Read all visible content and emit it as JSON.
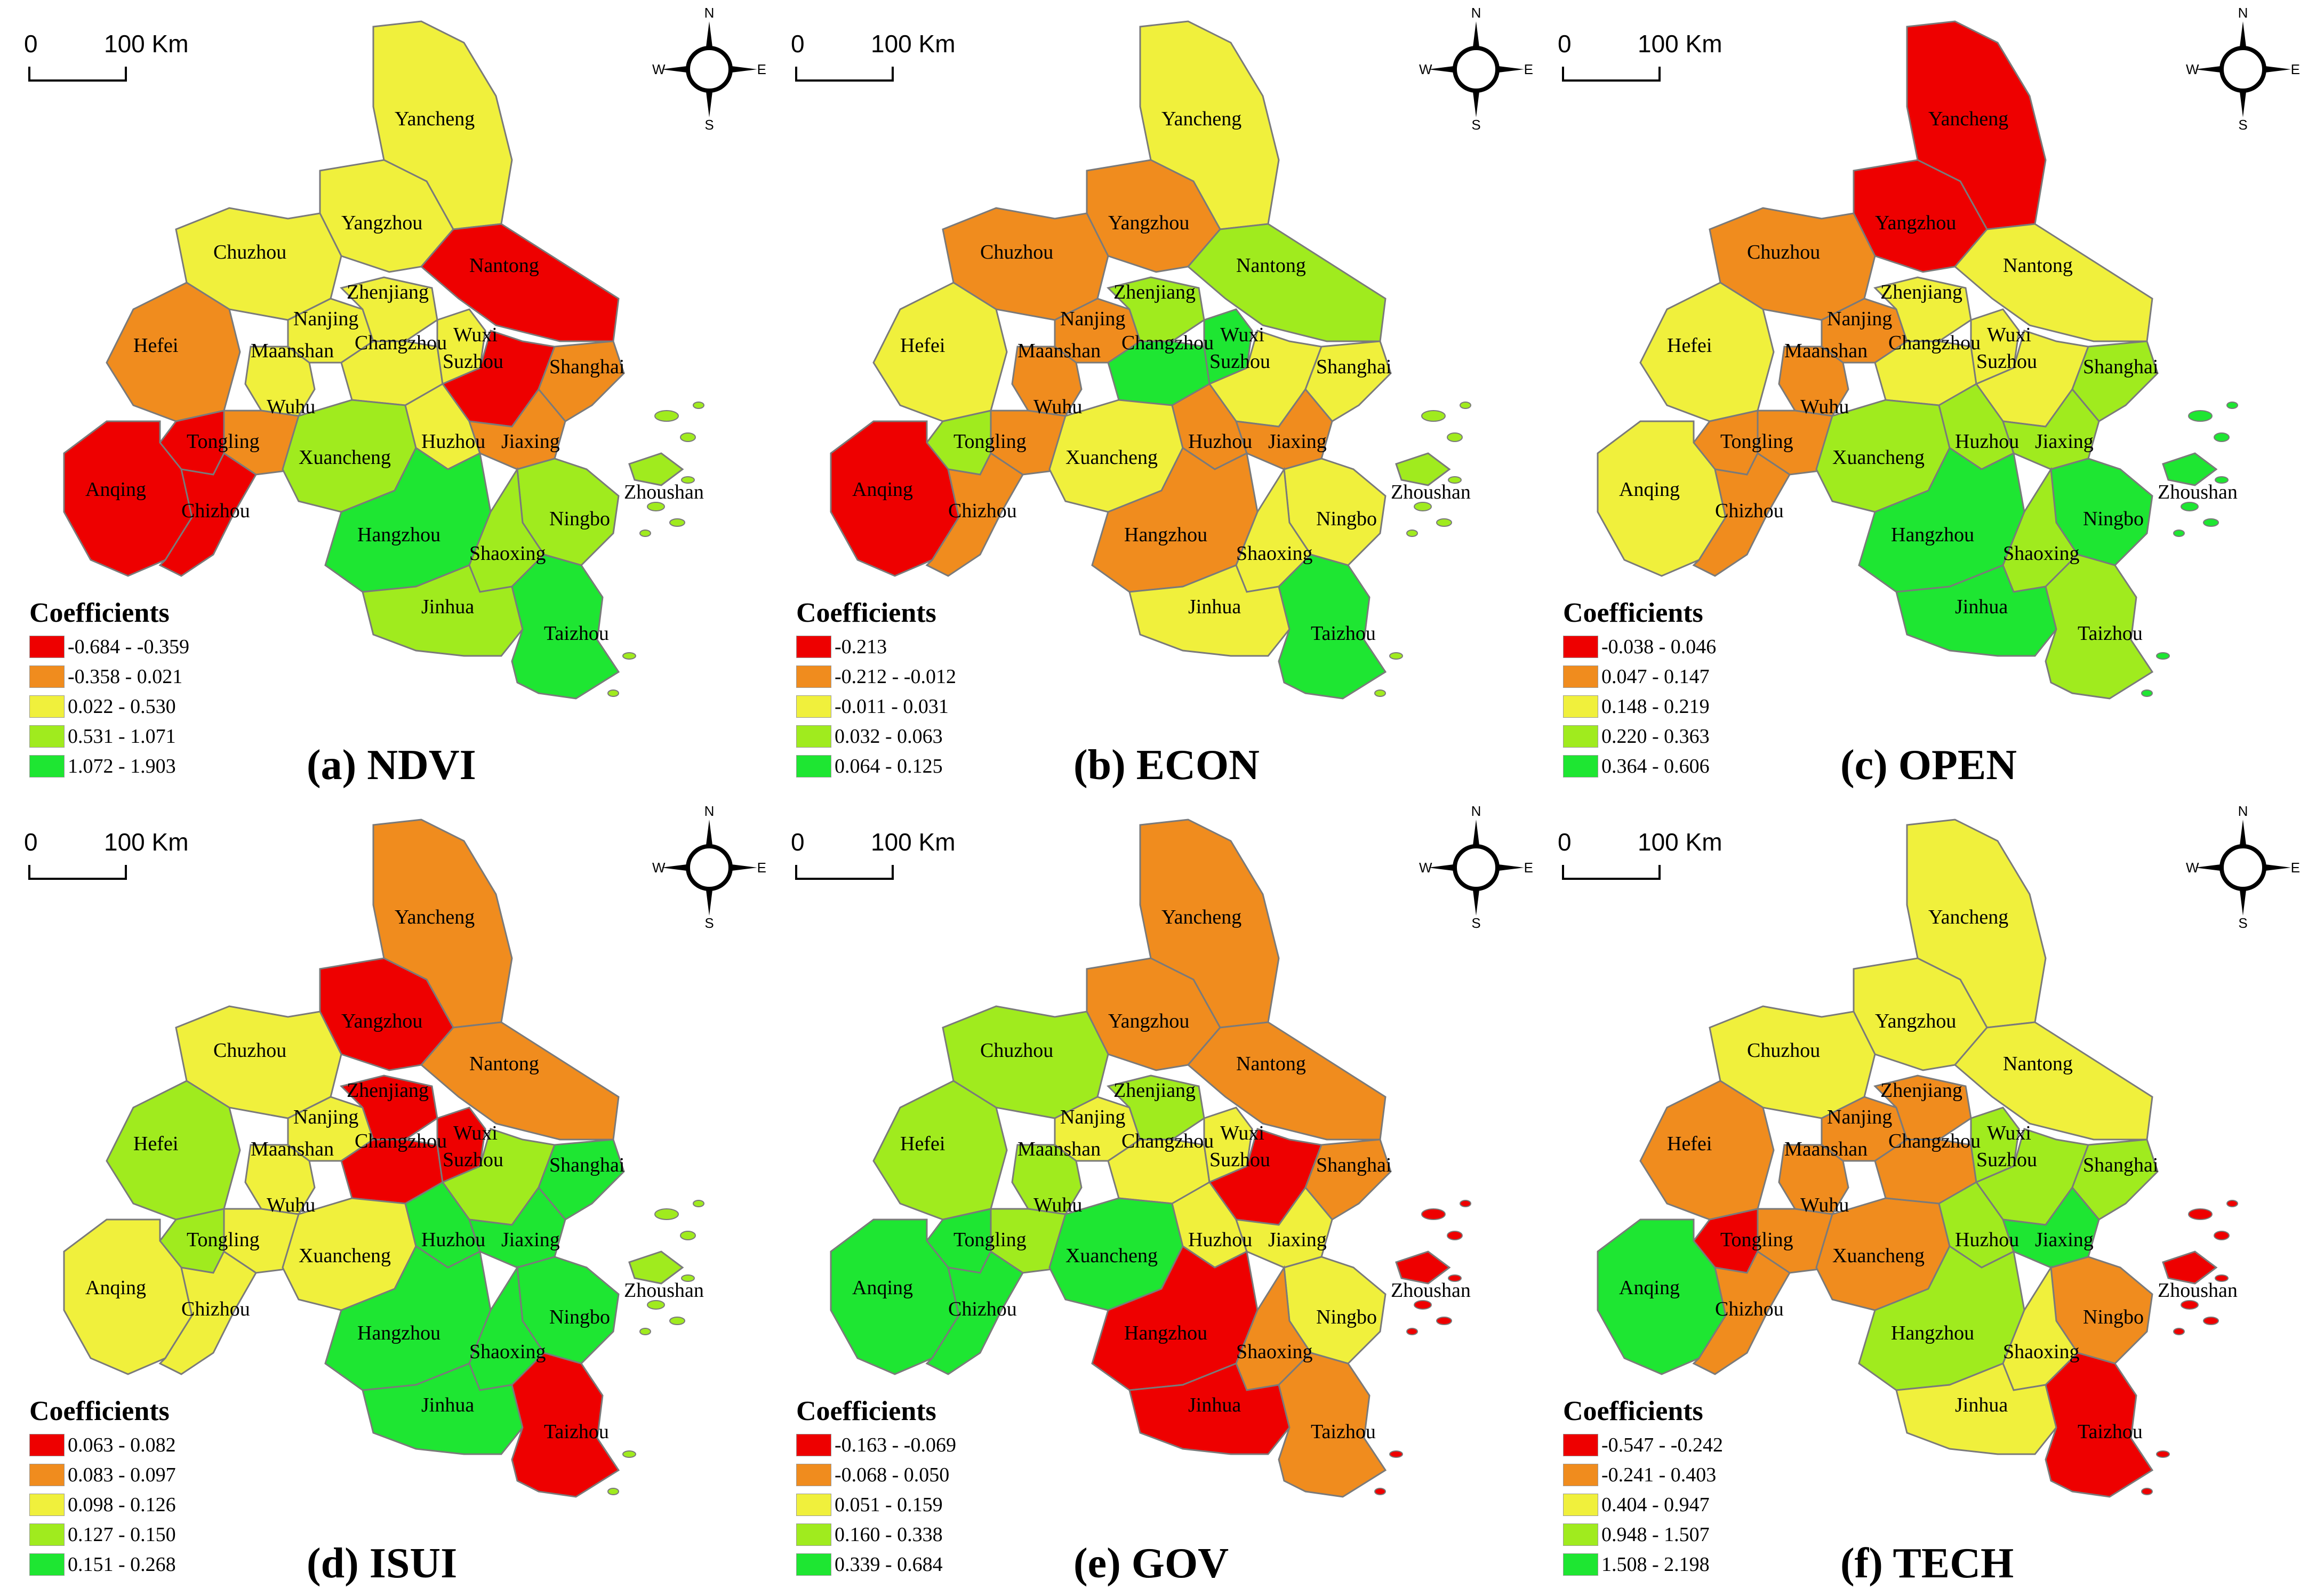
{
  "colors": {
    "red": "#ee0000",
    "orange": "#f08c1e",
    "yellow": "#f0f03c",
    "lightgreen": "#a0eb1e",
    "green": "#1ee632"
  },
  "scale_bar": {
    "zero": "0",
    "distance": "100 Km"
  },
  "compass": {
    "n": "N",
    "s": "S",
    "e": "E",
    "w": "W"
  },
  "legend_title": "Coefficients",
  "cities": [
    "Yancheng",
    "Yangzhou",
    "Chuzhou",
    "Nantong",
    "Nanjing",
    "Zhenjiang",
    "Hefei",
    "Maanshan",
    "Changzhou",
    "Wuxi",
    "Suzhou",
    "Shanghai",
    "Wuhu",
    "Tongling",
    "Xuancheng",
    "Huzhou",
    "Jiaxing",
    "Anqing",
    "Chizhou",
    "Zhoushan",
    "Hangzhou",
    "Ningbo",
    "Shaoxing",
    "Jinhua",
    "Taizhou"
  ],
  "panels": [
    {
      "caption": "(a) NDVI",
      "legend": [
        "-0.684 - -0.359",
        "-0.358 - 0.021",
        "0.022 - 0.530",
        "0.531 - 1.071",
        "1.072 - 1.903"
      ],
      "classes": {
        "Yancheng": 2,
        "Yangzhou": 2,
        "Chuzhou": 2,
        "Nantong": 0,
        "Nanjing": 2,
        "Zhenjiang": 2,
        "Hefei": 1,
        "Maanshan": 2,
        "Changzhou": 2,
        "Wuxi": 2,
        "Suzhou": 0,
        "Shanghai": 1,
        "Wuhu": 1,
        "Tongling": 0,
        "Xuancheng": 3,
        "Huzhou": 2,
        "Jiaxing": 1,
        "Anqing": 0,
        "Chizhou": 0,
        "Zhoushan": 3,
        "Hangzhou": 4,
        "Ningbo": 3,
        "Shaoxing": 3,
        "Jinhua": 3,
        "Taizhou": 4
      }
    },
    {
      "caption": "(b) ECON",
      "legend": [
        "-0.213",
        "-0.212 - -0.012",
        "-0.011 - 0.031",
        "0.032 - 0.063",
        "0.064 - 0.125"
      ],
      "classes": {
        "Yancheng": 2,
        "Yangzhou": 1,
        "Chuzhou": 1,
        "Nantong": 3,
        "Nanjing": 1,
        "Zhenjiang": 3,
        "Hefei": 2,
        "Maanshan": 1,
        "Changzhou": 4,
        "Wuxi": 4,
        "Suzhou": 2,
        "Shanghai": 2,
        "Wuhu": 1,
        "Tongling": 3,
        "Xuancheng": 2,
        "Huzhou": 1,
        "Jiaxing": 1,
        "Anqing": 0,
        "Chizhou": 1,
        "Zhoushan": 3,
        "Hangzhou": 1,
        "Ningbo": 2,
        "Shaoxing": 2,
        "Jinhua": 2,
        "Taizhou": 4
      }
    },
    {
      "caption": "(c) OPEN",
      "legend": [
        "-0.038 - 0.046",
        "0.047 - 0.147",
        "0.148 - 0.219",
        "0.220 - 0.363",
        "0.364 - 0.606"
      ],
      "classes": {
        "Yancheng": 0,
        "Yangzhou": 0,
        "Chuzhou": 1,
        "Nantong": 2,
        "Nanjing": 1,
        "Zhenjiang": 2,
        "Hefei": 2,
        "Maanshan": 1,
        "Changzhou": 2,
        "Wuxi": 2,
        "Suzhou": 2,
        "Shanghai": 3,
        "Wuhu": 1,
        "Tongling": 1,
        "Xuancheng": 3,
        "Huzhou": 3,
        "Jiaxing": 3,
        "Anqing": 2,
        "Chizhou": 1,
        "Zhoushan": 4,
        "Hangzhou": 4,
        "Ningbo": 4,
        "Shaoxing": 3,
        "Jinhua": 4,
        "Taizhou": 3
      }
    },
    {
      "caption": "(d) ISUI",
      "legend": [
        "0.063 - 0.082",
        "0.083 - 0.097",
        "0.098 - 0.126",
        "0.127 - 0.150",
        "0.151 - 0.268"
      ],
      "classes": {
        "Yancheng": 1,
        "Yangzhou": 0,
        "Chuzhou": 2,
        "Nantong": 1,
        "Nanjing": 2,
        "Zhenjiang": 0,
        "Hefei": 3,
        "Maanshan": 2,
        "Changzhou": 0,
        "Wuxi": 0,
        "Suzhou": 3,
        "Shanghai": 4,
        "Wuhu": 2,
        "Tongling": 3,
        "Xuancheng": 2,
        "Huzhou": 4,
        "Jiaxing": 4,
        "Anqing": 2,
        "Chizhou": 2,
        "Zhoushan": 3,
        "Hangzhou": 4,
        "Ningbo": 4,
        "Shaoxing": 4,
        "Jinhua": 4,
        "Taizhou": 0
      }
    },
    {
      "caption": "(e) GOV",
      "legend": [
        "-0.163 - -0.069",
        "-0.068 - 0.050",
        "0.051 - 0.159",
        "0.160 - 0.338",
        "0.339 - 0.684"
      ],
      "classes": {
        "Yancheng": 1,
        "Yangzhou": 1,
        "Chuzhou": 3,
        "Nantong": 1,
        "Nanjing": 2,
        "Zhenjiang": 3,
        "Hefei": 3,
        "Maanshan": 3,
        "Changzhou": 2,
        "Wuxi": 2,
        "Suzhou": 0,
        "Shanghai": 1,
        "Wuhu": 3,
        "Tongling": 4,
        "Xuancheng": 4,
        "Huzhou": 2,
        "Jiaxing": 2,
        "Anqing": 4,
        "Chizhou": 4,
        "Zhoushan": 0,
        "Hangzhou": 0,
        "Ningbo": 2,
        "Shaoxing": 1,
        "Jinhua": 0,
        "Taizhou": 1
      }
    },
    {
      "caption": "(f) TECH",
      "legend": [
        "-0.547 - -0.242",
        "-0.241 - 0.403",
        "0.404 - 0.947",
        "0.948 - 1.507",
        "1.508 - 2.198"
      ],
      "classes": {
        "Yancheng": 2,
        "Yangzhou": 2,
        "Chuzhou": 2,
        "Nantong": 2,
        "Nanjing": 1,
        "Zhenjiang": 1,
        "Hefei": 1,
        "Maanshan": 1,
        "Changzhou": 1,
        "Wuxi": 3,
        "Suzhou": 3,
        "Shanghai": 3,
        "Wuhu": 1,
        "Tongling": 0,
        "Xuancheng": 1,
        "Huzhou": 3,
        "Jiaxing": 4,
        "Anqing": 4,
        "Chizhou": 1,
        "Zhoushan": 0,
        "Hangzhou": 3,
        "Ningbo": 1,
        "Shaoxing": 2,
        "Jinhua": 2,
        "Taizhou": 0
      }
    }
  ]
}
